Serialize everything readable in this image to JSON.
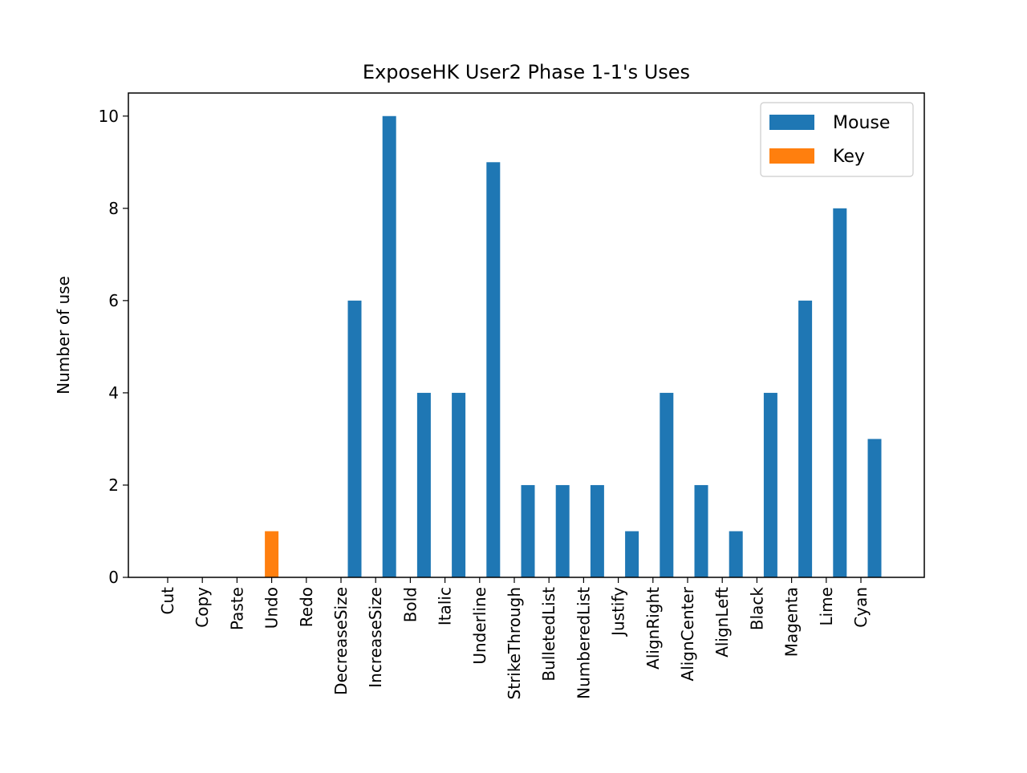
{
  "chart_data": {
    "type": "bar",
    "title": "ExposeHK User2 Phase 1-1's Uses",
    "xlabel": "",
    "ylabel": "Number of use",
    "ylim": [
      0,
      10.5
    ],
    "yticks": [
      0,
      2,
      4,
      6,
      8,
      10
    ],
    "grid": false,
    "legend_position": "top-right",
    "categories": [
      "Cut",
      "Copy",
      "Paste",
      "Undo",
      "Redo",
      "DecreaseSize",
      "IncreaseSize",
      "Bold",
      "Italic",
      "Underline",
      "StrikeThrough",
      "BulletedList",
      "NumberedList",
      "Justify",
      "AlignRight",
      "AlignCenter",
      "AlignLeft",
      "Black",
      "Magenta",
      "Lime",
      "Cyan"
    ],
    "series": [
      {
        "name": "Mouse",
        "color": "#1f77b4",
        "values": [
          0,
          0,
          0,
          0,
          0,
          6,
          10,
          4,
          4,
          9,
          2,
          2,
          2,
          1,
          4,
          2,
          1,
          4,
          6,
          8,
          3
        ]
      },
      {
        "name": "Key",
        "color": "#ff7f0e",
        "values": [
          0,
          0,
          0,
          1,
          0,
          0,
          0,
          0,
          0,
          0,
          0,
          0,
          0,
          0,
          0,
          0,
          0,
          0,
          0,
          0,
          0
        ]
      }
    ]
  }
}
